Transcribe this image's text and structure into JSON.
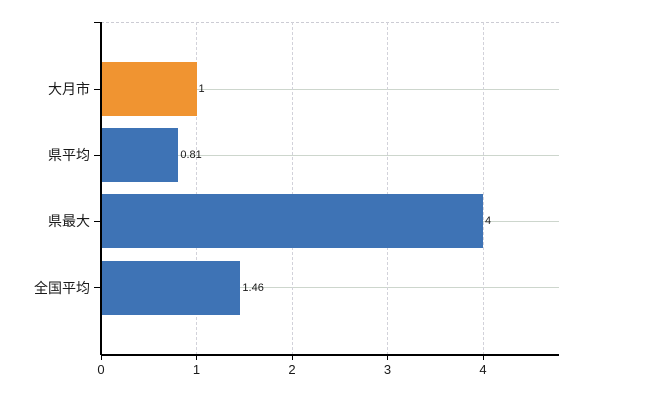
{
  "chart_data": {
    "type": "bar",
    "orientation": "horizontal",
    "title": "",
    "xlabel": "",
    "ylabel": "",
    "categories": [
      "大月市",
      "県平均",
      "県最大",
      "全国平均"
    ],
    "values": [
      1,
      0.81,
      4,
      1.46
    ],
    "value_labels": [
      "1",
      "0.81",
      "4",
      "1.46"
    ],
    "series": [
      {
        "name": "",
        "values": [
          1,
          0.81,
          4,
          1.46
        ]
      }
    ],
    "x_ticks": [
      "0",
      "1",
      "2",
      "3",
      "4"
    ],
    "x_tick_values": [
      0,
      1,
      2,
      3,
      4
    ],
    "xlim": [
      0,
      4.8
    ],
    "grid": "horizontal solid, vertical dashed, dashed top border",
    "legend_position": "none",
    "colors": {
      "highlight_bar": "#f09431",
      "default_bar": "#3e73b5",
      "axis": "#000000",
      "hgrid": "#cdd6cd",
      "vgrid": "#d2d2da",
      "text": "#1a1a1a",
      "background": "#ffffff"
    },
    "bar_colors": [
      "#f09431",
      "#3e73b5",
      "#3e73b5",
      "#3e73b5"
    ]
  }
}
